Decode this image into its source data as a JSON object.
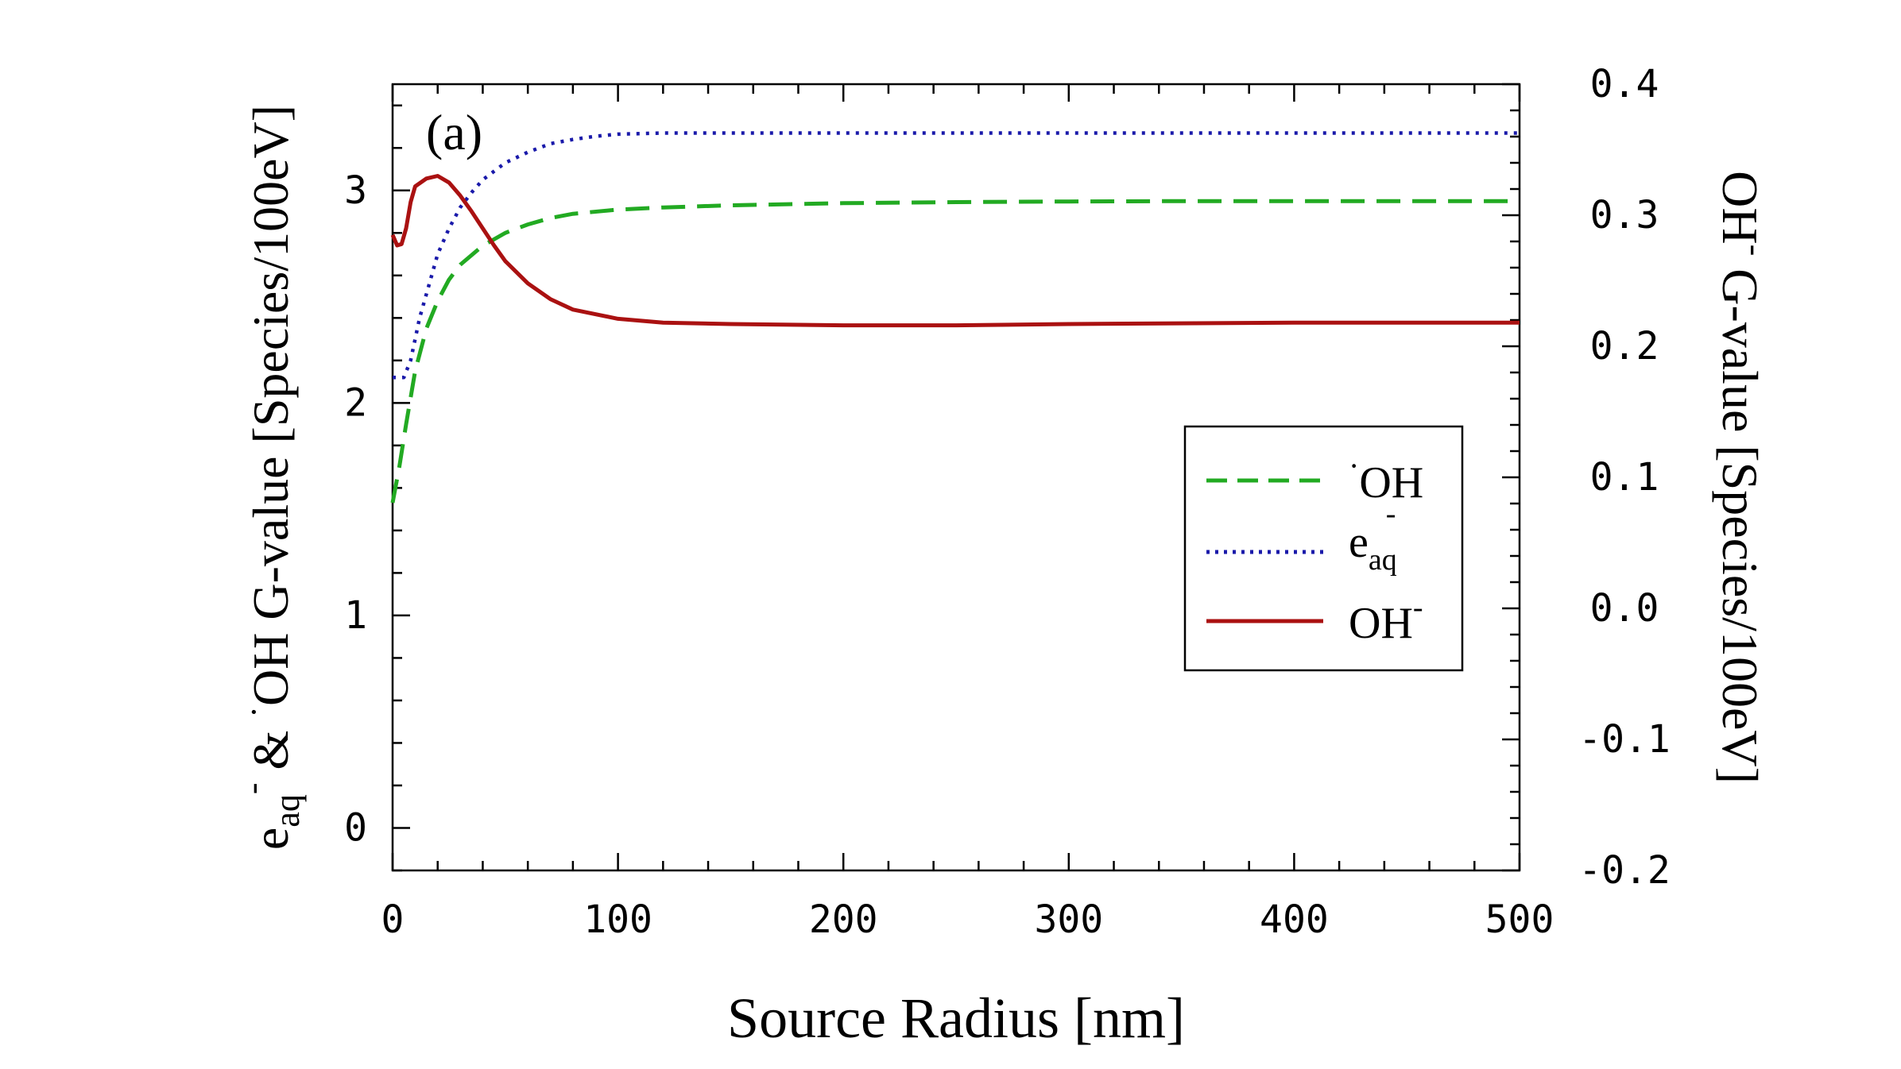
{
  "chart_data": {
    "type": "line",
    "panel_label": "(a)",
    "xlabel": "Source Radius [nm]",
    "ylabel_left": {
      "e_symbol": "e",
      "e_subscript": "aq",
      "e_superscript": "-",
      "amp": " & ",
      "oh_dot": "·",
      "rest": "OH G-value [Species/100eV]"
    },
    "ylabel_right": {
      "oh": "OH",
      "oh_superscript": "-",
      "rest": " G-value [Species/100eV]"
    },
    "xlim": [
      0,
      500
    ],
    "ylim_left": [
      -0.2,
      3.5
    ],
    "ylim_right": [
      -0.2,
      0.4
    ],
    "x_ticks": [
      "0",
      "100",
      "200",
      "300",
      "400",
      "500"
    ],
    "x_tick_values": [
      0,
      100,
      200,
      300,
      400,
      500
    ],
    "y_left_ticks": [
      "0",
      "1",
      "2",
      "3"
    ],
    "y_left_tick_values": [
      0,
      1,
      2,
      3
    ],
    "y_right_ticks": [
      "-0.2",
      "-0.1",
      "0.0",
      "0.1",
      "0.2",
      "0.3",
      "0.4"
    ],
    "y_right_tick_values": [
      -0.2,
      -0.1,
      0.0,
      0.1,
      0.2,
      0.3,
      0.4
    ],
    "legend_position": "right-center",
    "series": [
      {
        "name": "·OH",
        "legend_label": "OH",
        "legend_prefix": "·",
        "axis": "left",
        "style": "dashed",
        "color": "#22aa22",
        "x": [
          0,
          3,
          6,
          10,
          15,
          20,
          25,
          30,
          40,
          50,
          60,
          70,
          80,
          100,
          120,
          150,
          200,
          250,
          300,
          350,
          400,
          450,
          500
        ],
        "y": [
          1.53,
          1.7,
          1.9,
          2.15,
          2.35,
          2.48,
          2.58,
          2.65,
          2.74,
          2.8,
          2.84,
          2.87,
          2.89,
          2.91,
          2.92,
          2.93,
          2.94,
          2.945,
          2.948,
          2.95,
          2.95,
          2.95,
          2.95
        ]
      },
      {
        "name": "e_aq-",
        "legend_label": "e",
        "legend_subscript": "aq",
        "legend_superscript": "-",
        "axis": "left",
        "style": "dotted",
        "color": "#1a1aaa",
        "x": [
          0,
          5,
          8,
          12,
          16,
          20,
          25,
          30,
          35,
          40,
          50,
          60,
          70,
          80,
          90,
          100,
          120,
          150,
          200,
          300,
          400,
          500
        ],
        "y": [
          2.12,
          2.12,
          2.2,
          2.4,
          2.55,
          2.7,
          2.82,
          2.92,
          2.99,
          3.05,
          3.13,
          3.18,
          3.22,
          3.24,
          3.255,
          3.265,
          3.27,
          3.27,
          3.27,
          3.27,
          3.27,
          3.27
        ]
      },
      {
        "name": "OH-",
        "legend_label": "OH",
        "legend_superscript": "-",
        "axis": "right",
        "style": "solid",
        "color": "#aa1111",
        "x": [
          0,
          2,
          4,
          6,
          8,
          10,
          15,
          20,
          25,
          30,
          35,
          40,
          45,
          50,
          60,
          70,
          80,
          100,
          120,
          150,
          200,
          250,
          300,
          400,
          500
        ],
        "y": [
          0.285,
          0.277,
          0.278,
          0.29,
          0.31,
          0.322,
          0.328,
          0.33,
          0.325,
          0.315,
          0.303,
          0.29,
          0.277,
          0.265,
          0.248,
          0.236,
          0.228,
          0.221,
          0.218,
          0.217,
          0.216,
          0.216,
          0.217,
          0.218,
          0.218
        ]
      }
    ]
  }
}
